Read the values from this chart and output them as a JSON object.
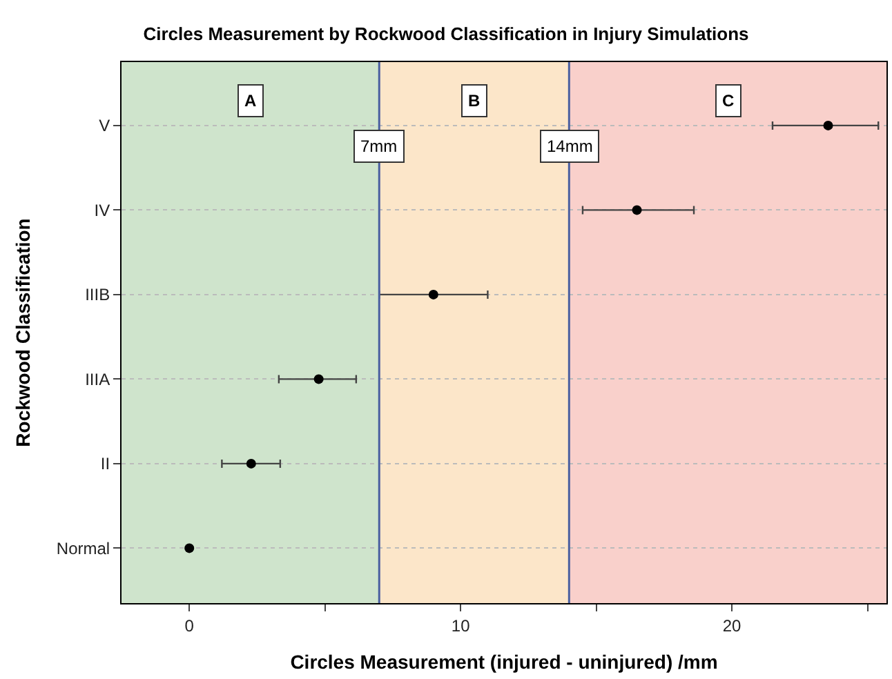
{
  "chart_data": {
    "type": "scatter",
    "orientation": "horizontal",
    "title": "Circles Measurement by Rockwood Classification in Injury Simulations",
    "xlabel": "Circles Measurement (injured - uninjured) /mm",
    "ylabel": "Rockwood Classification",
    "categories": [
      "V",
      "IV",
      "IIIB",
      "IIIA",
      "II",
      "Normal"
    ],
    "series": [
      {
        "color": "#000000",
        "values": [
          23.55,
          16.5,
          9.0,
          4.77,
          2.28,
          0.0
        ],
        "errors": [
          [
            21.5,
            25.4
          ],
          [
            14.5,
            18.6
          ],
          [
            7.0,
            11.0
          ],
          [
            3.3,
            6.15
          ],
          [
            1.2,
            3.35
          ],
          null
        ]
      }
    ],
    "xlim": [
      -2.5,
      25.7
    ],
    "xticks": [
      0,
      {
        "value": 5,
        "label": null
      },
      10,
      {
        "value": 15,
        "label": null
      },
      20,
      {
        "value": 25,
        "label": null
      }
    ],
    "bands": [
      {
        "axis": "x",
        "from": -2.5,
        "to": 7,
        "label": "A",
        "color": "#cfe4cc"
      },
      {
        "axis": "x",
        "from": 7,
        "to": 14,
        "label": "B",
        "color": "#fce6c9"
      },
      {
        "axis": "x",
        "from": 14,
        "to": 25.7,
        "label": "C",
        "color": "#f9d0cb"
      }
    ],
    "ref_lines": [
      {
        "axis": "x",
        "value": 7,
        "label": "7mm",
        "color": "#4a5fa0"
      },
      {
        "axis": "x",
        "value": 14,
        "label": "14mm",
        "color": "#4a5fa0"
      }
    ],
    "grid": "y",
    "marker": "circle"
  }
}
